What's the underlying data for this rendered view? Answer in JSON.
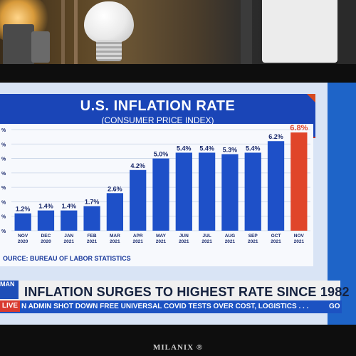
{
  "chart_data": {
    "type": "bar",
    "title": "U.S. INFLATION RATE",
    "subtitle": "(CONSUMER PRICE INDEX)",
    "categories": [
      "NOV 2020",
      "DEC 2020",
      "JAN 2021",
      "FEB 2021",
      "MAR 2021",
      "APR 2021",
      "MAY 2021",
      "JUN 2021",
      "JUL 2021",
      "AUG 2021",
      "SEP 2021",
      "OCT 2021",
      "NOV 2021"
    ],
    "values": [
      1.2,
      1.4,
      1.4,
      1.7,
      2.6,
      4.2,
      5.0,
      5.4,
      5.4,
      5.3,
      5.4,
      6.2,
      6.8
    ],
    "value_labels": [
      "1.2%",
      "1.4%",
      "1.4%",
      "1.7%",
      "2.6%",
      "4.2%",
      "5.0%",
      "5.4%",
      "5.4%",
      "5.3%",
      "5.4%",
      "6.2%",
      "6.8%"
    ],
    "ytick_labels": [
      "%",
      "%",
      "%",
      "%",
      "%",
      "%",
      "%",
      "%"
    ],
    "ylim": [
      0,
      7
    ],
    "grid": true,
    "highlight_index": 12,
    "colors": {
      "bar": "#1e50c8",
      "highlight": "#e0452a",
      "label": "#1a2a6c",
      "highlight_label": "#e0452a"
    }
  },
  "source": "OURCE: BUREAU OF LABOR STATISTICS",
  "chyron": {
    "logo": "MAN",
    "headline": "INFLATION SURGES TO HIGHEST RATE SINCE 1982",
    "live": "LIVE",
    "ticker": "N ADMIN SHOT DOWN FREE UNIVERSAL COVID TESTS OVER COST, LOGISTICS . . .",
    "ticker_end": "GO"
  },
  "tv_brand": "MILANIX ®"
}
